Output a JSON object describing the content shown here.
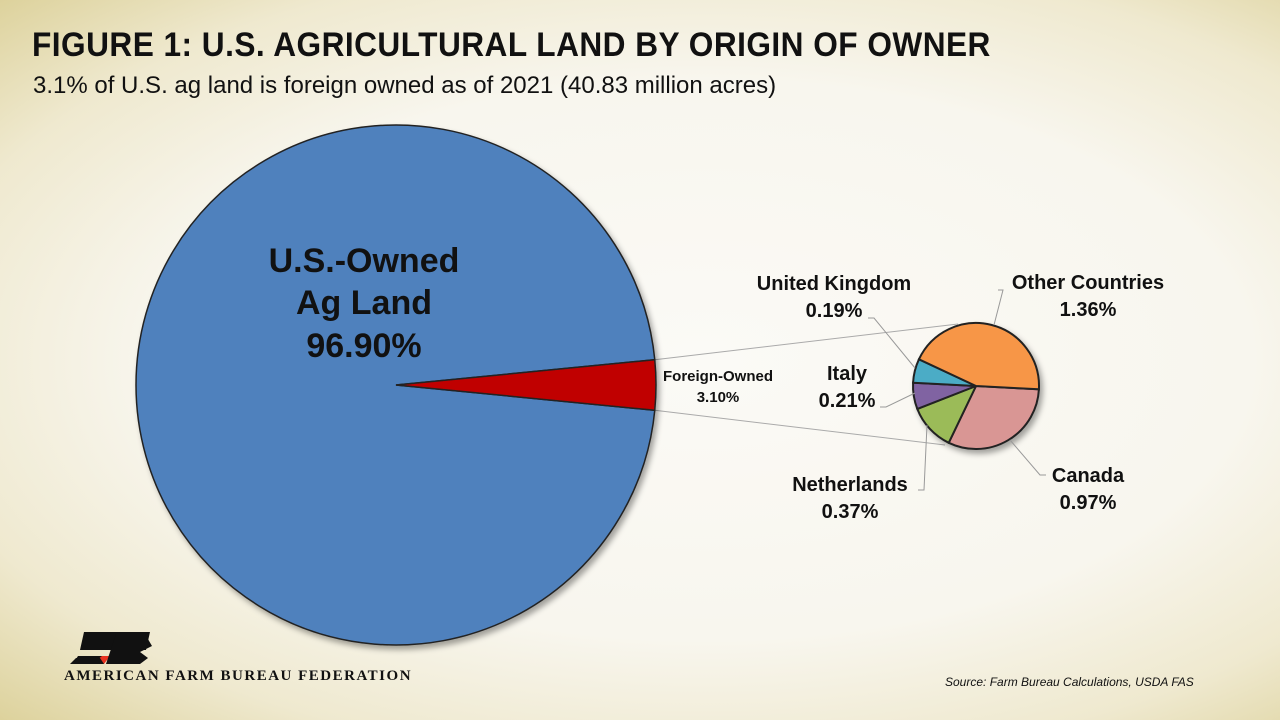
{
  "chart_data": [
    {
      "type": "pie",
      "title": "FIGURE 1: U.S. AGRICULTURAL LAND BY ORIGIN OF OWNER",
      "subtitle": "3.1% of U.S. ag land is foreign owned as of 2021 (40.83 million acres)",
      "slices": [
        {
          "label_lines": [
            "U.S.-Owned",
            "Ag Land"
          ],
          "value_label": "96.90%",
          "value": 96.9,
          "color": "#4f81bd"
        },
        {
          "label_lines": [
            "Foreign-Owned"
          ],
          "value_label": "3.10%",
          "value": 3.1,
          "color": "#c00000"
        }
      ]
    },
    {
      "type": "pie",
      "slices": [
        {
          "label": "Canada",
          "value_label": "0.97%",
          "value": 0.97,
          "color": "#d99694"
        },
        {
          "label": "Netherlands",
          "value_label": "0.37%",
          "value": 0.37,
          "color": "#9bbb59"
        },
        {
          "label": "Italy",
          "value_label": "0.21%",
          "value": 0.21,
          "color": "#8064a2"
        },
        {
          "label": "United Kingdom",
          "value_label": "0.19%",
          "value": 0.19,
          "color": "#4bacc6"
        },
        {
          "label": "Other Countries",
          "value_label": "1.36%",
          "value": 1.36,
          "color": "#f79646"
        }
      ]
    }
  ],
  "source": "Source: Farm Bureau Calculations, USDA FAS",
  "logo": {
    "text": "AMERICAN FARM BUREAU FEDERATION",
    "mark": "FB",
    "colors": {
      "black": "#111111",
      "red": "#e8321e"
    }
  }
}
